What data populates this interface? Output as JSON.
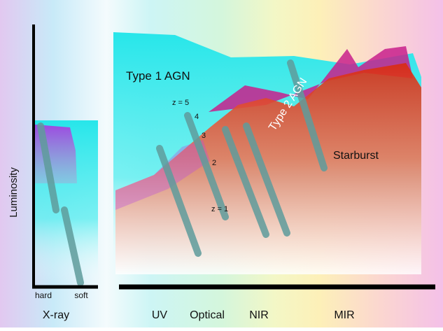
{
  "axis": {
    "y_label": "Luminosity"
  },
  "xray_labels": [
    "hard",
    "soft"
  ],
  "bands": [
    "X-ray",
    "UV",
    "Optical",
    "NIR",
    "MIR"
  ],
  "components": {
    "type1": "Type 1 AGN",
    "type2": "Type 2 AGN",
    "starburst": "Starburst"
  },
  "redshifts": [
    "z = 5",
    "4",
    "3",
    "2",
    "z = 1"
  ]
}
